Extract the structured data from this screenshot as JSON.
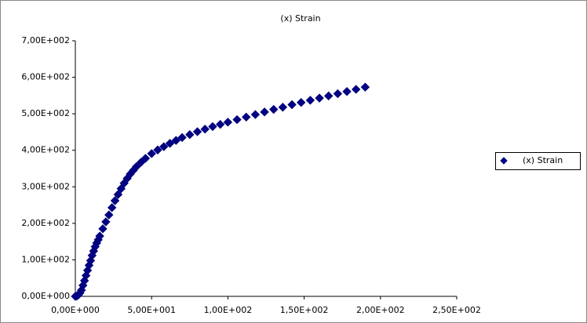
{
  "chart_data": {
    "type": "scatter",
    "title": "(x)   Strain",
    "series": [
      {
        "name": "(x)   Strain",
        "color": "#000080",
        "x": [
          0,
          1,
          2,
          3,
          4,
          5,
          6,
          7,
          8,
          9,
          10,
          11,
          12,
          13,
          14,
          15,
          16,
          18,
          20,
          22,
          24,
          26,
          28,
          30,
          32,
          34,
          36,
          38,
          40,
          43,
          46,
          50,
          54,
          58,
          62,
          66,
          70,
          75,
          80,
          85,
          90,
          95,
          100,
          106,
          112,
          118,
          124,
          130,
          136,
          142,
          148,
          154,
          160,
          166,
          172,
          178,
          184,
          190
        ],
        "values": [
          0,
          1,
          4,
          9,
          17,
          30,
          43,
          57,
          71,
          85,
          98,
          112,
          124,
          136,
          146,
          155,
          165,
          185,
          204,
          223,
          243,
          262,
          279,
          295,
          310,
          323,
          335,
          345,
          355,
          367,
          378,
          391,
          401,
          410,
          419,
          427,
          435,
          443,
          451,
          458,
          465,
          471,
          477,
          484,
          491,
          498,
          505,
          512,
          518,
          525,
          531,
          537,
          543,
          549,
          555,
          561,
          567,
          573
        ]
      }
    ],
    "xlim": [
      0,
      250
    ],
    "xticks": [
      {
        "value": 0,
        "label": "0,00E+000"
      },
      {
        "value": 50,
        "label": "5,00E+001"
      },
      {
        "value": 100,
        "label": "1,00E+002"
      },
      {
        "value": 150,
        "label": "1,50E+002"
      },
      {
        "value": 200,
        "label": "2,00E+002"
      },
      {
        "value": 250,
        "label": "2,50E+002"
      }
    ],
    "ylim": [
      0,
      700
    ],
    "yticks": [
      {
        "value": 0,
        "label": "0,00E+000"
      },
      {
        "value": 100,
        "label": "1,00E+002"
      },
      {
        "value": 200,
        "label": "2,00E+002"
      },
      {
        "value": 300,
        "label": "3,00E+002"
      },
      {
        "value": 400,
        "label": "4,00E+002"
      },
      {
        "value": 500,
        "label": "5,00E+002"
      },
      {
        "value": 600,
        "label": "6,00E+002"
      },
      {
        "value": 700,
        "label": "7,00E+002"
      }
    ],
    "grid": false,
    "legend": "right"
  }
}
